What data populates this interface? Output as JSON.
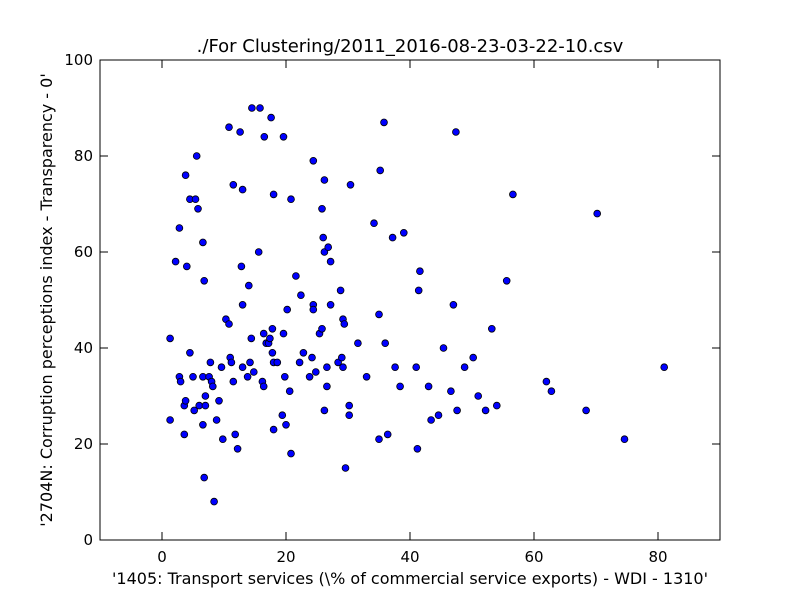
{
  "chart_data": {
    "type": "scatter",
    "title": "./For Clustering/2011_2016-08-23-03-22-10.csv",
    "xlabel": "'1405: Transport services  (\\% of commercial service exports) - WDI - 1310'",
    "ylabel": "'2704N: Corruption perceptions index - Transparency - 0'",
    "xlim": [
      -10,
      90
    ],
    "ylim": [
      0,
      100
    ],
    "x_ticks": [
      0,
      20,
      40,
      60,
      80
    ],
    "y_ticks": [
      0,
      20,
      40,
      60,
      80,
      100
    ],
    "x_tick_labels": [
      "0",
      "20",
      "40",
      "60",
      "80"
    ],
    "y_tick_labels": [
      "0",
      "20",
      "40",
      "60",
      "80",
      "100"
    ],
    "grid": false,
    "marker_color": "#0000ff",
    "marker_edge_color": "#000000",
    "points": [
      [
        1.3,
        42
      ],
      [
        1.3,
        25
      ],
      [
        2.2,
        58
      ],
      [
        2.8,
        34
      ],
      [
        2.8,
        65
      ],
      [
        3.0,
        33
      ],
      [
        3.6,
        28
      ],
      [
        3.6,
        22
      ],
      [
        3.8,
        29
      ],
      [
        3.8,
        76
      ],
      [
        4.0,
        57
      ],
      [
        4.5,
        71
      ],
      [
        4.5,
        39
      ],
      [
        5.0,
        34
      ],
      [
        5.2,
        27
      ],
      [
        5.4,
        71
      ],
      [
        5.6,
        80
      ],
      [
        5.8,
        69
      ],
      [
        6.0,
        28
      ],
      [
        6.6,
        24
      ],
      [
        6.6,
        62
      ],
      [
        6.6,
        34
      ],
      [
        6.8,
        54
      ],
      [
        7.0,
        30
      ],
      [
        7.0,
        28
      ],
      [
        6.8,
        13
      ],
      [
        7.8,
        37
      ],
      [
        7.6,
        34
      ],
      [
        8.0,
        33
      ],
      [
        8.2,
        32
      ],
      [
        8.4,
        8
      ],
      [
        8.8,
        25
      ],
      [
        9.2,
        29
      ],
      [
        9.6,
        36
      ],
      [
        9.8,
        21
      ],
      [
        10.3,
        46
      ],
      [
        10.8,
        86
      ],
      [
        10.8,
        45
      ],
      [
        11.0,
        38
      ],
      [
        11.2,
        37
      ],
      [
        11.5,
        74
      ],
      [
        11.5,
        33
      ],
      [
        11.8,
        22
      ],
      [
        12.2,
        19
      ],
      [
        12.6,
        85
      ],
      [
        12.8,
        57
      ],
      [
        13.0,
        49
      ],
      [
        13.0,
        73
      ],
      [
        13.0,
        36
      ],
      [
        13.8,
        34
      ],
      [
        14.0,
        53
      ],
      [
        14.2,
        37
      ],
      [
        14.4,
        42
      ],
      [
        14.5,
        90
      ],
      [
        14.8,
        35
      ],
      [
        15.6,
        60
      ],
      [
        15.8,
        90
      ],
      [
        16.2,
        33
      ],
      [
        16.4,
        32
      ],
      [
        16.4,
        43
      ],
      [
        16.5,
        84
      ],
      [
        16.8,
        41
      ],
      [
        17.2,
        41
      ],
      [
        17.4,
        42
      ],
      [
        17.6,
        88
      ],
      [
        17.8,
        39
      ],
      [
        17.8,
        44
      ],
      [
        18.0,
        37
      ],
      [
        18.0,
        72
      ],
      [
        18.0,
        23
      ],
      [
        18.6,
        37
      ],
      [
        19.4,
        26
      ],
      [
        19.6,
        43
      ],
      [
        19.6,
        84
      ],
      [
        19.8,
        34
      ],
      [
        20.0,
        24
      ],
      [
        20.2,
        48
      ],
      [
        20.6,
        31
      ],
      [
        20.8,
        71
      ],
      [
        20.8,
        18
      ],
      [
        21.6,
        55
      ],
      [
        22.2,
        37
      ],
      [
        22.4,
        51
      ],
      [
        22.8,
        39
      ],
      [
        23.8,
        34
      ],
      [
        24.2,
        38
      ],
      [
        24.4,
        49
      ],
      [
        24.4,
        48
      ],
      [
        24.4,
        79
      ],
      [
        24.8,
        35
      ],
      [
        25.4,
        43
      ],
      [
        25.8,
        69
      ],
      [
        25.8,
        44
      ],
      [
        26.0,
        63
      ],
      [
        26.2,
        75
      ],
      [
        26.2,
        27
      ],
      [
        26.2,
        60
      ],
      [
        26.8,
        61
      ],
      [
        26.6,
        36
      ],
      [
        26.6,
        32
      ],
      [
        27.2,
        49
      ],
      [
        27.2,
        58
      ],
      [
        28.4,
        37
      ],
      [
        28.8,
        52
      ],
      [
        29.0,
        38
      ],
      [
        29.2,
        36
      ],
      [
        29.2,
        46
      ],
      [
        29.4,
        45
      ],
      [
        29.6,
        15
      ],
      [
        30.2,
        28
      ],
      [
        30.2,
        26
      ],
      [
        30.4,
        74
      ],
      [
        31.6,
        41
      ],
      [
        33.0,
        34
      ],
      [
        34.2,
        66
      ],
      [
        35.0,
        47
      ],
      [
        35.0,
        21
      ],
      [
        35.2,
        77
      ],
      [
        35.8,
        87
      ],
      [
        36.0,
        41
      ],
      [
        36.4,
        22
      ],
      [
        37.2,
        63
      ],
      [
        37.6,
        36
      ],
      [
        38.4,
        32
      ],
      [
        39.0,
        64
      ],
      [
        41.0,
        36
      ],
      [
        41.2,
        19
      ],
      [
        41.4,
        52
      ],
      [
        41.6,
        56
      ],
      [
        43.0,
        32
      ],
      [
        43.4,
        25
      ],
      [
        44.6,
        26
      ],
      [
        45.4,
        40
      ],
      [
        46.6,
        31
      ],
      [
        47.0,
        49
      ],
      [
        47.4,
        85
      ],
      [
        47.6,
        27
      ],
      [
        48.8,
        36
      ],
      [
        50.2,
        38
      ],
      [
        51.0,
        30
      ],
      [
        52.2,
        27
      ],
      [
        53.2,
        44
      ],
      [
        54.0,
        28
      ],
      [
        55.6,
        54
      ],
      [
        56.6,
        72
      ],
      [
        62.0,
        33
      ],
      [
        62.8,
        31
      ],
      [
        68.4,
        27
      ],
      [
        70.2,
        68
      ],
      [
        74.6,
        21
      ],
      [
        81.0,
        36
      ]
    ]
  }
}
